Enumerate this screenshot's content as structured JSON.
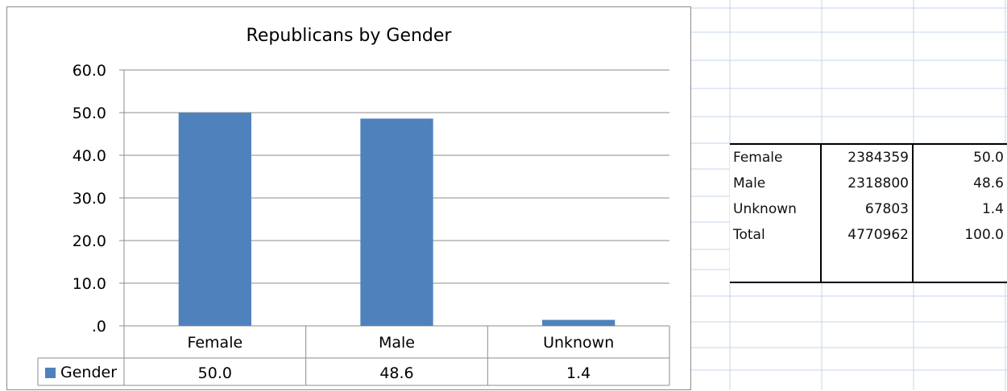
{
  "chart_data": {
    "type": "bar",
    "title": "Republicans by Gender",
    "categories": [
      "Female",
      "Male",
      "Unknown"
    ],
    "series": [
      {
        "name": "Gender",
        "values": [
          50.0,
          48.6,
          1.4
        ],
        "value_labels": [
          "50.0",
          "48.6",
          "1.4"
        ]
      }
    ],
    "yticks": [
      "60.0",
      "50.0",
      "40.0",
      "30.0",
      "20.0",
      "10.0",
      ".0"
    ],
    "ylim": [
      0,
      60
    ],
    "ystep": 10,
    "grid": true,
    "data_table": true,
    "bar_color": "#4f81bd",
    "grid_color": "#8c8c8c"
  },
  "table": {
    "rows": [
      {
        "label": "Female",
        "count": "2384359",
        "pct": "50.0"
      },
      {
        "label": "Male",
        "count": "2318800",
        "pct": "48.6"
      },
      {
        "label": "Unknown",
        "count": "67803",
        "pct": "1.4"
      },
      {
        "label": "Total",
        "count": "4770962",
        "pct": "100.0"
      }
    ]
  }
}
